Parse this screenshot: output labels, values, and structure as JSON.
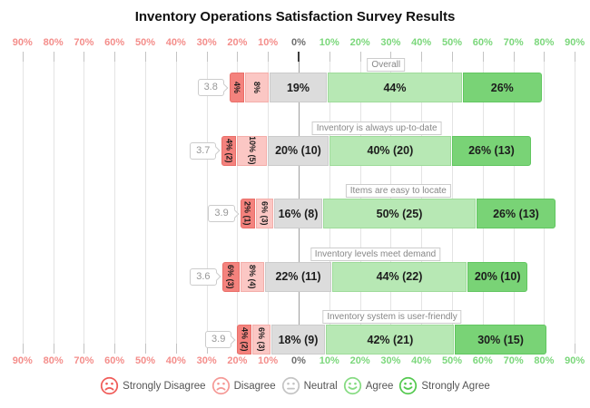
{
  "title": "Inventory Operations Satisfaction Survey Results",
  "chart_data": {
    "type": "bar",
    "subtype": "diverging-stacked-likert",
    "title": "Inventory Operations Satisfaction Survey Results",
    "axis_ticks": [
      {
        "value": -90,
        "label": "90%"
      },
      {
        "value": -80,
        "label": "80%"
      },
      {
        "value": -70,
        "label": "70%"
      },
      {
        "value": -60,
        "label": "60%"
      },
      {
        "value": -50,
        "label": "50%"
      },
      {
        "value": -40,
        "label": "40%"
      },
      {
        "value": -30,
        "label": "30%"
      },
      {
        "value": -20,
        "label": "20%"
      },
      {
        "value": -10,
        "label": "10%"
      },
      {
        "value": 0,
        "label": "0%"
      },
      {
        "value": 10,
        "label": "10%"
      },
      {
        "value": 20,
        "label": "20%"
      },
      {
        "value": 30,
        "label": "30%"
      },
      {
        "value": 40,
        "label": "40%"
      },
      {
        "value": 50,
        "label": "50%"
      },
      {
        "value": 60,
        "label": "60%"
      },
      {
        "value": 70,
        "label": "70%"
      },
      {
        "value": 80,
        "label": "80%"
      },
      {
        "value": 90,
        "label": "90%"
      }
    ],
    "xlim": [
      -90,
      90
    ],
    "grid": true,
    "categories": [
      "Overall",
      "Inventory is always up-to-date",
      "Items are easy to locate",
      "Inventory levels meet demand",
      "Inventory system is user-friendly"
    ],
    "scores": [
      "3.8",
      "3.7",
      "3.9",
      "3.6",
      "3.9"
    ],
    "series": [
      {
        "name": "Strongly Disagree",
        "color": "#f4827d",
        "border_color": "#e96f69",
        "values": [
          4,
          4,
          2,
          6,
          4
        ],
        "labels": [
          "4%",
          "4% (2)",
          "2% (1)",
          "6% (3)",
          "4% (2)"
        ]
      },
      {
        "name": "Disagree",
        "color": "#fbc7c4",
        "border_color": "#f3aeaa",
        "values": [
          8,
          10,
          6,
          8,
          6
        ],
        "labels": [
          "8%",
          "10% (5)",
          "6% (3)",
          "8% (4)",
          "6% (3)"
        ]
      },
      {
        "name": "Neutral",
        "color": "#dcdcdc",
        "border_color": "#cbcbcb",
        "values": [
          19,
          20,
          16,
          22,
          18
        ],
        "labels": [
          "19%",
          "20% (10)",
          "16% (8)",
          "22% (11)",
          "18% (9)"
        ]
      },
      {
        "name": "Agree",
        "color": "#b7e8b4",
        "border_color": "#9edb9a",
        "values": [
          44,
          40,
          50,
          44,
          42
        ],
        "labels": [
          "44%",
          "40% (20)",
          "50% (25)",
          "44% (22)",
          "42% (21)"
        ]
      },
      {
        "name": "Strongly Agree",
        "color": "#79d376",
        "border_color": "#61c660",
        "values": [
          26,
          26,
          26,
          20,
          30
        ],
        "labels": [
          "26%",
          "26% (13)",
          "26% (13)",
          "20% (10)",
          "30% (15)"
        ]
      }
    ],
    "legend_position": "bottom"
  },
  "legend": {
    "items": [
      {
        "label": "Strongly Disagree",
        "color": "#f05c59",
        "mood": "sad"
      },
      {
        "label": "Disagree",
        "color": "#f59996",
        "mood": "sad"
      },
      {
        "label": "Neutral",
        "color": "#c4c4c4",
        "mood": "neutral"
      },
      {
        "label": "Agree",
        "color": "#86db82",
        "mood": "happy"
      },
      {
        "label": "Strongly Agree",
        "color": "#54c94f",
        "mood": "happy"
      }
    ]
  },
  "colors": {
    "axis_negative_label": "#f48e8b",
    "axis_positive_label": "#7bd77b",
    "axis_zero_label": "#6f6f6f",
    "gridline": "#e4e4e4",
    "bar_text": "#1c1c1c"
  }
}
